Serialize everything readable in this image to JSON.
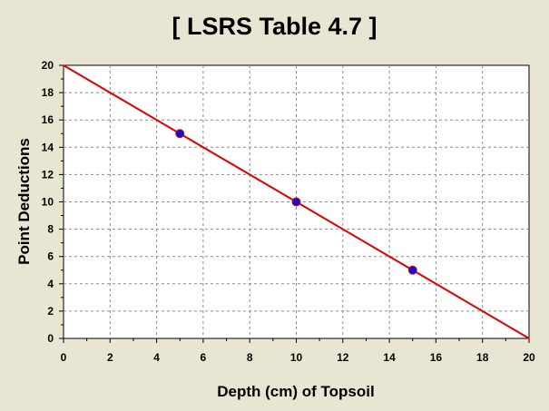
{
  "chart_data": {
    "type": "scatter",
    "title": "[ LSRS Table 4.7 ]",
    "xlabel": "Depth (cm) of Topsoil",
    "ylabel": "Point Deductions",
    "xlim": [
      0,
      20
    ],
    "ylim": [
      0,
      20
    ],
    "x_ticks": [
      "0",
      "2",
      "4",
      "6",
      "8",
      "10",
      "12",
      "14",
      "16",
      "18",
      "20"
    ],
    "y_ticks": [
      "0",
      "2",
      "4",
      "6",
      "8",
      "10",
      "12",
      "14",
      "16",
      "18",
      "20"
    ],
    "grid": true,
    "series": [
      {
        "kind": "line",
        "color": "#e00000",
        "x": [
          0,
          20
        ],
        "y": [
          20,
          0
        ]
      },
      {
        "kind": "points",
        "color": "#1010d0",
        "x": [
          5,
          10,
          15
        ],
        "y": [
          15,
          10,
          5
        ]
      }
    ]
  }
}
